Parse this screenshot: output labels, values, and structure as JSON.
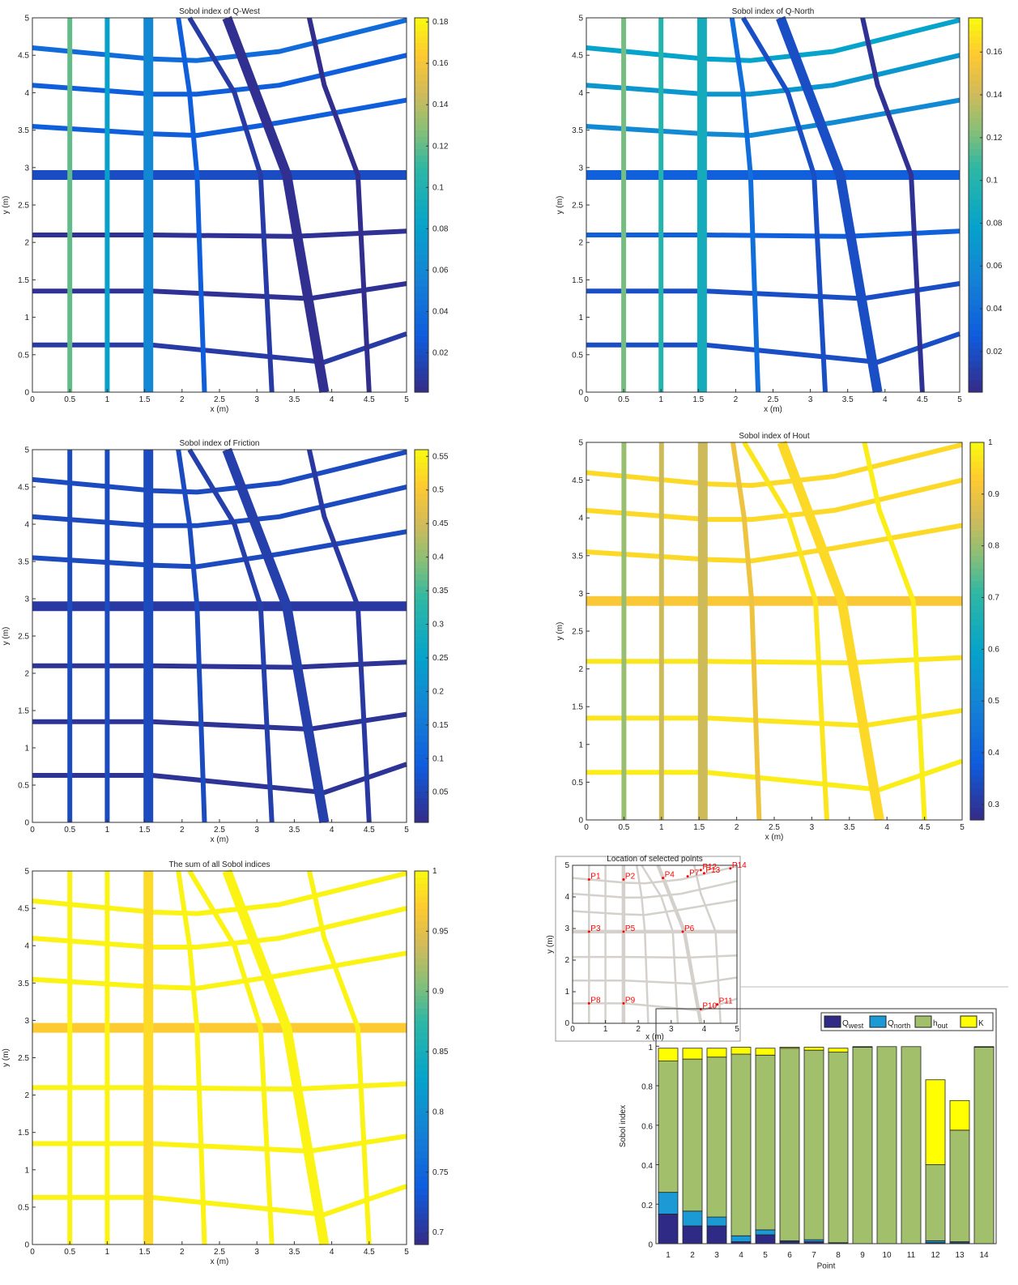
{
  "chart_data": [
    {
      "type": "network",
      "title": "Sobol index of Q-West",
      "x_label": "x (m)",
      "y_label": "y (m)",
      "xlim": [
        0,
        5
      ],
      "ylim": [
        0,
        5
      ],
      "xticks": [
        0,
        0.5,
        1,
        1.5,
        2,
        2.5,
        3,
        3.5,
        4,
        4.5,
        5
      ],
      "yticks": [
        0,
        0.5,
        1,
        1.5,
        2,
        2.5,
        3,
        3.5,
        4,
        4.5,
        5
      ],
      "values": [
        0.01,
        0.005,
        0.005,
        0.02,
        0.03,
        0.03,
        0.04,
        0.12,
        0.08,
        0.06,
        0.03,
        0.01,
        0.004,
        0.003
      ],
      "clim": [
        0.001,
        0.182
      ],
      "cticks": [
        0.02,
        0.04,
        0.06,
        0.08,
        0.1,
        0.12,
        0.14,
        0.16,
        0.18
      ]
    },
    {
      "type": "network",
      "title": "Sobol index of Q-North",
      "x_label": "x (m)",
      "y_label": "y (m)",
      "xlim": [
        0,
        5
      ],
      "ylim": [
        0,
        5
      ],
      "xticks": [
        0,
        0.5,
        1,
        1.5,
        2,
        2.5,
        3,
        3.5,
        4,
        4.5,
        5
      ],
      "yticks": [
        0,
        0.5,
        1,
        1.5,
        2,
        2.5,
        3,
        3.5,
        4,
        4.5,
        5
      ],
      "values": [
        0.02,
        0.02,
        0.03,
        0.03,
        0.06,
        0.07,
        0.08,
        0.12,
        0.1,
        0.09,
        0.04,
        0.02,
        0.02,
        0.005
      ],
      "clim": [
        0.001,
        0.176
      ],
      "cticks": [
        0.02,
        0.04,
        0.06,
        0.08,
        0.1,
        0.12,
        0.14,
        0.16
      ]
    },
    {
      "type": "network",
      "title": "Sobol index of Friction",
      "x_label": "x (m)",
      "y_label": "y (m)",
      "xlim": [
        0,
        5
      ],
      "ylim": [
        0,
        5
      ],
      "xticks": [
        0,
        0.5,
        1,
        1.5,
        2,
        2.5,
        3,
        3.5,
        4,
        4.5,
        5
      ],
      "yticks": [
        0,
        0.5,
        1,
        1.5,
        2,
        2.5,
        3,
        3.5,
        4,
        4.5,
        5
      ],
      "values": [
        0.02,
        0.02,
        0.02,
        0.03,
        0.06,
        0.06,
        0.06,
        0.06,
        0.06,
        0.06,
        0.06,
        0.04,
        0.04,
        0.03
      ],
      "clim": [
        0.005,
        0.56
      ],
      "cticks": [
        0.05,
        0.1,
        0.15,
        0.2,
        0.25,
        0.3,
        0.35,
        0.4,
        0.45,
        0.5,
        0.55
      ]
    },
    {
      "type": "network",
      "title": "Sobol index of Hout",
      "x_label": "x (m)",
      "y_label": "y (m)",
      "xlim": [
        0,
        5
      ],
      "ylim": [
        0,
        5
      ],
      "xticks": [
        0,
        0.5,
        1,
        1.5,
        2,
        2.5,
        3,
        3.5,
        4,
        4.5,
        5
      ],
      "yticks": [
        0,
        0.5,
        1,
        1.5,
        2,
        2.5,
        3,
        3.5,
        4,
        4.5,
        5
      ],
      "values": [
        0.98,
        0.97,
        0.97,
        0.92,
        0.95,
        0.95,
        0.95,
        0.8,
        0.85,
        0.85,
        0.9,
        0.97,
        0.95,
        0.98
      ],
      "clim": [
        0.27,
        1
      ],
      "cticks": [
        0.3,
        0.4,
        0.5,
        0.6,
        0.7,
        0.8,
        0.9,
        1
      ]
    },
    {
      "type": "network",
      "title": "The sum of all Sobol indices",
      "x_label": "x (m)",
      "y_label": "y (m)",
      "xlim": [
        0,
        5
      ],
      "ylim": [
        0,
        5
      ],
      "xticks": [
        0,
        0.5,
        1,
        1.5,
        2,
        2.5,
        3,
        3.5,
        4,
        4.5,
        5
      ],
      "yticks": [
        0,
        0.5,
        1,
        1.5,
        2,
        2.5,
        3,
        3.5,
        4,
        4.5,
        5
      ],
      "values": [
        0.995,
        0.995,
        0.995,
        0.97,
        0.995,
        0.995,
        0.995,
        0.995,
        0.995,
        0.98,
        0.995,
        0.995,
        0.995,
        0.995
      ],
      "clim": [
        0.69,
        1
      ],
      "cticks": [
        0.7,
        0.75,
        0.8,
        0.85,
        0.9,
        0.95,
        1
      ]
    },
    {
      "type": "scatter",
      "title": "Location of selected points",
      "x_label": "x (m)",
      "y_label": "y (m)",
      "xlim": [
        0,
        5
      ],
      "ylim": [
        0,
        5
      ],
      "xticks": [
        0,
        1,
        2,
        3,
        4,
        5
      ],
      "yticks": [
        0,
        1,
        2,
        3,
        4,
        5
      ],
      "color": "#ff0000",
      "labels": [
        "P1",
        "P2",
        "P3",
        "P4",
        "P5",
        "P6",
        "P7",
        "P8",
        "P9",
        "P10",
        "P11",
        "P12",
        "P13",
        "P14"
      ],
      "x": [
        0.5,
        1.55,
        0.5,
        2.75,
        1.55,
        3.35,
        3.5,
        0.5,
        1.55,
        3.9,
        4.4,
        3.9,
        4.0,
        4.8
      ],
      "y": [
        4.55,
        4.55,
        2.9,
        4.6,
        2.9,
        2.9,
        4.65,
        0.63,
        0.63,
        0.45,
        0.6,
        4.85,
        4.75,
        4.9
      ]
    },
    {
      "type": "bar",
      "stacked": true,
      "x_label": "Point",
      "y_label": "Sobol index",
      "categories": [
        1,
        2,
        3,
        4,
        5,
        6,
        7,
        8,
        9,
        10,
        11,
        12,
        13,
        14
      ],
      "ylim": [
        0,
        1.19
      ],
      "yticks": [
        0,
        0.2,
        0.4,
        0.6,
        0.8,
        1
      ],
      "legend": "top-right",
      "series": [
        {
          "name": "Q_west",
          "color": "#2e2a86",
          "values": [
            0.15,
            0.09,
            0.09,
            0.01,
            0.045,
            0.01,
            0.01,
            0.005,
            0,
            0,
            0,
            0.005,
            0.005,
            0
          ]
        },
        {
          "name": "Q_north",
          "color": "#1b9ad6",
          "values": [
            0.11,
            0.075,
            0.045,
            0.03,
            0.025,
            0.005,
            0.01,
            0,
            0,
            0,
            0,
            0.01,
            0.005,
            0
          ]
        },
        {
          "name": "h_out",
          "color": "#a2bf6c",
          "values": [
            0.665,
            0.77,
            0.81,
            0.92,
            0.885,
            0.975,
            0.96,
            0.965,
            0.995,
            0.998,
            0.998,
            0.385,
            0.565,
            0.995
          ]
        },
        {
          "name": "K",
          "color": "#ffff00",
          "values": [
            0.065,
            0.055,
            0.045,
            0.035,
            0.035,
            0.005,
            0.015,
            0.02,
            0.003,
            0,
            0,
            0.43,
            0.15,
            0.003
          ]
        }
      ]
    }
  ]
}
